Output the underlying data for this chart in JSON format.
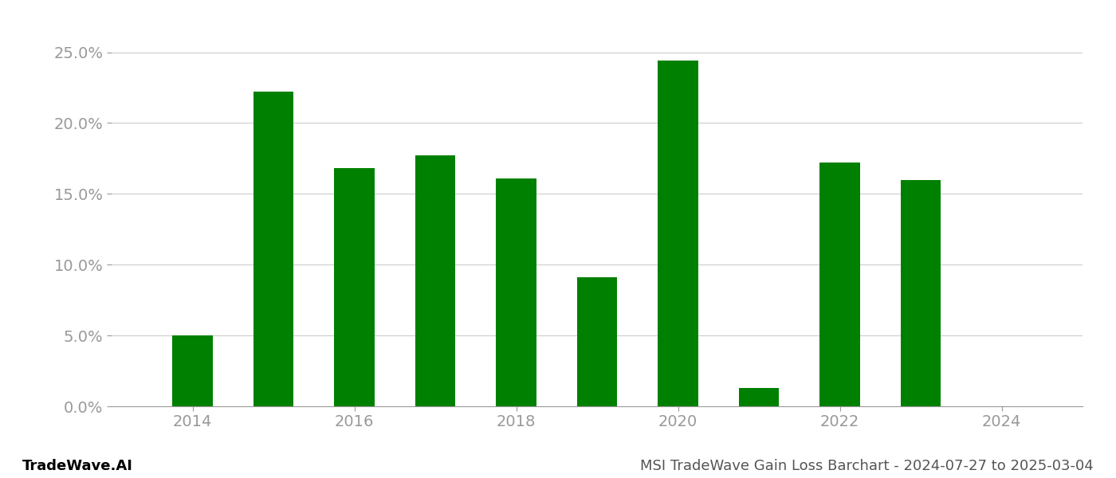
{
  "years": [
    2014,
    2015,
    2016,
    2017,
    2018,
    2019,
    2020,
    2021,
    2022,
    2023,
    2024
  ],
  "values": [
    0.05,
    0.222,
    0.168,
    0.177,
    0.161,
    0.091,
    0.244,
    0.013,
    0.172,
    0.16,
    0.0
  ],
  "bar_color": "#008000",
  "background_color": "#ffffff",
  "grid_color": "#cccccc",
  "axis_label_color": "#999999",
  "ylim": [
    0.0,
    0.27
  ],
  "yticks": [
    0.0,
    0.05,
    0.1,
    0.15,
    0.2,
    0.25
  ],
  "xticks": [
    2014,
    2016,
    2018,
    2020,
    2022,
    2024
  ],
  "footer_left": "TradeWave.AI",
  "footer_right": "MSI TradeWave Gain Loss Barchart - 2024-07-27 to 2025-03-04",
  "tick_fontsize": 14,
  "footer_fontsize": 13,
  "bar_width": 0.5
}
